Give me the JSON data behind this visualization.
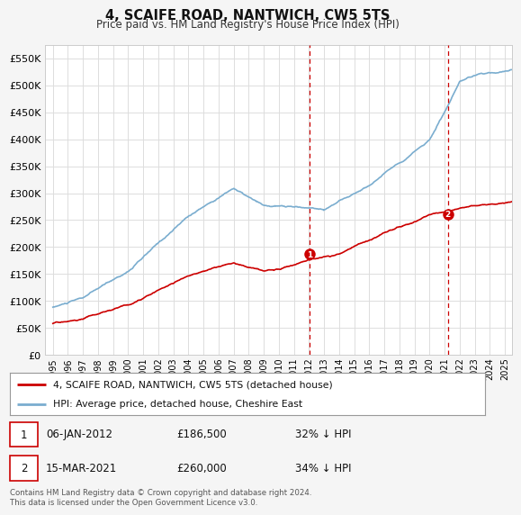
{
  "title": "4, SCAIFE ROAD, NANTWICH, CW5 5TS",
  "subtitle": "Price paid vs. HM Land Registry's House Price Index (HPI)",
  "ylim": [
    0,
    575000
  ],
  "yticks": [
    0,
    50000,
    100000,
    150000,
    200000,
    250000,
    300000,
    350000,
    400000,
    450000,
    500000,
    550000
  ],
  "ytick_labels": [
    "£0",
    "£50K",
    "£100K",
    "£150K",
    "£200K",
    "£250K",
    "£300K",
    "£350K",
    "£400K",
    "£450K",
    "£500K",
    "£550K"
  ],
  "background_color": "#f5f5f5",
  "plot_bg_color": "#ffffff",
  "grid_color": "#dddddd",
  "red_color": "#cc0000",
  "blue_color": "#7aadcf",
  "marker1_price": 186500,
  "marker1_year": 2012.03,
  "marker2_price": 260000,
  "marker2_year": 2021.21,
  "legend_label_red": "4, SCAIFE ROAD, NANTWICH, CW5 5TS (detached house)",
  "legend_label_blue": "HPI: Average price, detached house, Cheshire East",
  "footer": "Contains HM Land Registry data © Crown copyright and database right 2024.\nThis data is licensed under the Open Government Licence v3.0.",
  "xstart": 1995,
  "xend": 2025
}
